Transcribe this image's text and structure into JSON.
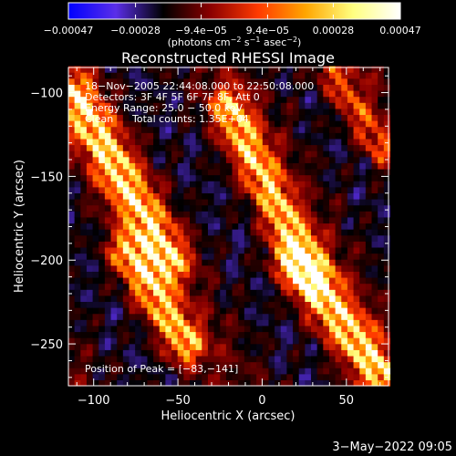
{
  "chart_data": {
    "type": "heatmap",
    "title": "Reconstructed RHESSI Image",
    "xlabel": "Heliocentric X (arcsec)",
    "ylabel": "Heliocentric Y (arcsec)",
    "xlim": [
      -115,
      75
    ],
    "ylim": [
      -275,
      -85
    ],
    "xticks": [
      -100,
      -50,
      0,
      50
    ],
    "yticks": [
      -100,
      -150,
      -200,
      -250
    ],
    "xtick_labels": [
      "−100",
      "−50",
      "0",
      "50"
    ],
    "ytick_labels": [
      "−100",
      "−150",
      "−200",
      "−250"
    ],
    "colorbar": {
      "min": -0.00047,
      "max": 0.00047,
      "tick_values": [
        -0.00047,
        -0.00028,
        -9.4e-05,
        9.4e-05,
        0.00028,
        0.00047
      ],
      "tick_labels": [
        "−0.00047",
        "−0.00028",
        "−9.4e−05",
        "9.4e−05",
        "0.00028",
        "0.00047"
      ],
      "unit_parts": [
        "(photons cm",
        "−2",
        " s",
        "−1",
        " asec",
        "−2",
        ")"
      ],
      "colors": [
        "#0000ff",
        "#5a2ee8",
        "#000000",
        "#8b0000",
        "#ff3a00",
        "#ffa500",
        "#ffff80",
        "#ffffff"
      ]
    },
    "annotations": {
      "time_range": "18−Nov−2005 22:44:08.000 to 22:50:08.000",
      "detectors": "Detectors: 3F 4F 5F 6F 7F 8F, Att 0",
      "energy": "Energy Range: 25.0 − 50.0 keV",
      "clean_label": "Clean",
      "total_counts": "Total counts: 1.35E+04",
      "peak": "Position of Peak = [−83,−141]"
    },
    "peak": [
      -83,
      -141
    ],
    "ridges": [
      {
        "x0": -112,
        "y0": -100,
        "x1": -55,
        "y1": -200,
        "amp": 1.0,
        "width": 9
      },
      {
        "x0": -80,
        "y0": -195,
        "x1": -45,
        "y1": -250,
        "amp": 0.9,
        "width": 8
      },
      {
        "x0": -20,
        "y0": -108,
        "x1": 30,
        "y1": -210,
        "amp": 0.9,
        "width": 8
      },
      {
        "x0": 20,
        "y0": -200,
        "x1": 72,
        "y1": -270,
        "amp": 1.0,
        "width": 9
      },
      {
        "x0": 40,
        "y0": -85,
        "x1": 72,
        "y1": -135,
        "amp": 0.55,
        "width": 7
      }
    ],
    "grid": false
  },
  "footer": {
    "date": "3−May−2022 09:05"
  }
}
